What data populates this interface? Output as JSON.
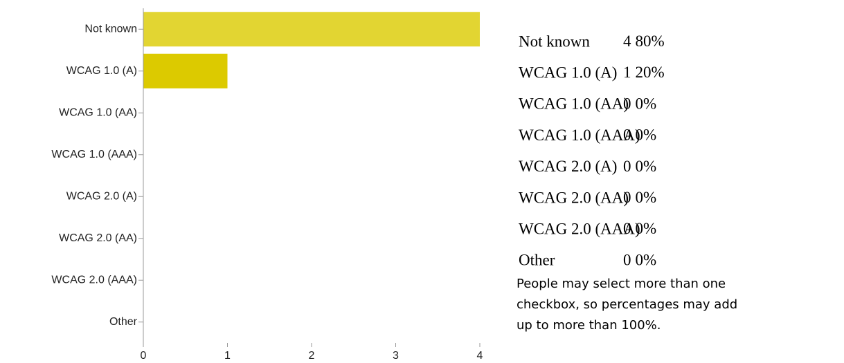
{
  "chart_data": {
    "type": "hbar",
    "categories": [
      "Not known",
      "WCAG 1.0 (A)",
      "WCAG 1.0 (AA)",
      "WCAG 1.0 (AAA)",
      "WCAG 2.0 (A)",
      "WCAG 2.0 (AA)",
      "WCAG 2.0 (AAA)",
      "Other"
    ],
    "values": [
      4,
      1,
      0,
      0,
      0,
      0,
      0,
      0
    ],
    "colors": [
      "#e2d532",
      "#dcca00",
      "#e2d532",
      "#e2d532",
      "#e2d532",
      "#e2d532",
      "#e2d532",
      "#e2d532"
    ],
    "xlim": [
      0,
      4
    ],
    "xticks": [
      0,
      1,
      2,
      3,
      4
    ]
  },
  "table": {
    "rows": [
      [
        "Not known",
        4,
        "80%"
      ],
      [
        "WCAG 1.0 (A)",
        1,
        "20%"
      ],
      [
        "WCAG 1.0 (AA)",
        0,
        "0%"
      ],
      [
        "WCAG 1.0 (AAA)",
        0,
        "0%"
      ],
      [
        "WCAG 2.0 (A)",
        0,
        "0%"
      ],
      [
        "WCAG 2.0 (AA)",
        0,
        "0%"
      ],
      [
        "WCAG 2.0 (AAA)",
        0,
        "0%"
      ],
      [
        "Other",
        0,
        "0%"
      ]
    ]
  },
  "note": [
    "People may select more than one",
    "checkbox, so percentages may add",
    "up to more than 100%."
  ]
}
